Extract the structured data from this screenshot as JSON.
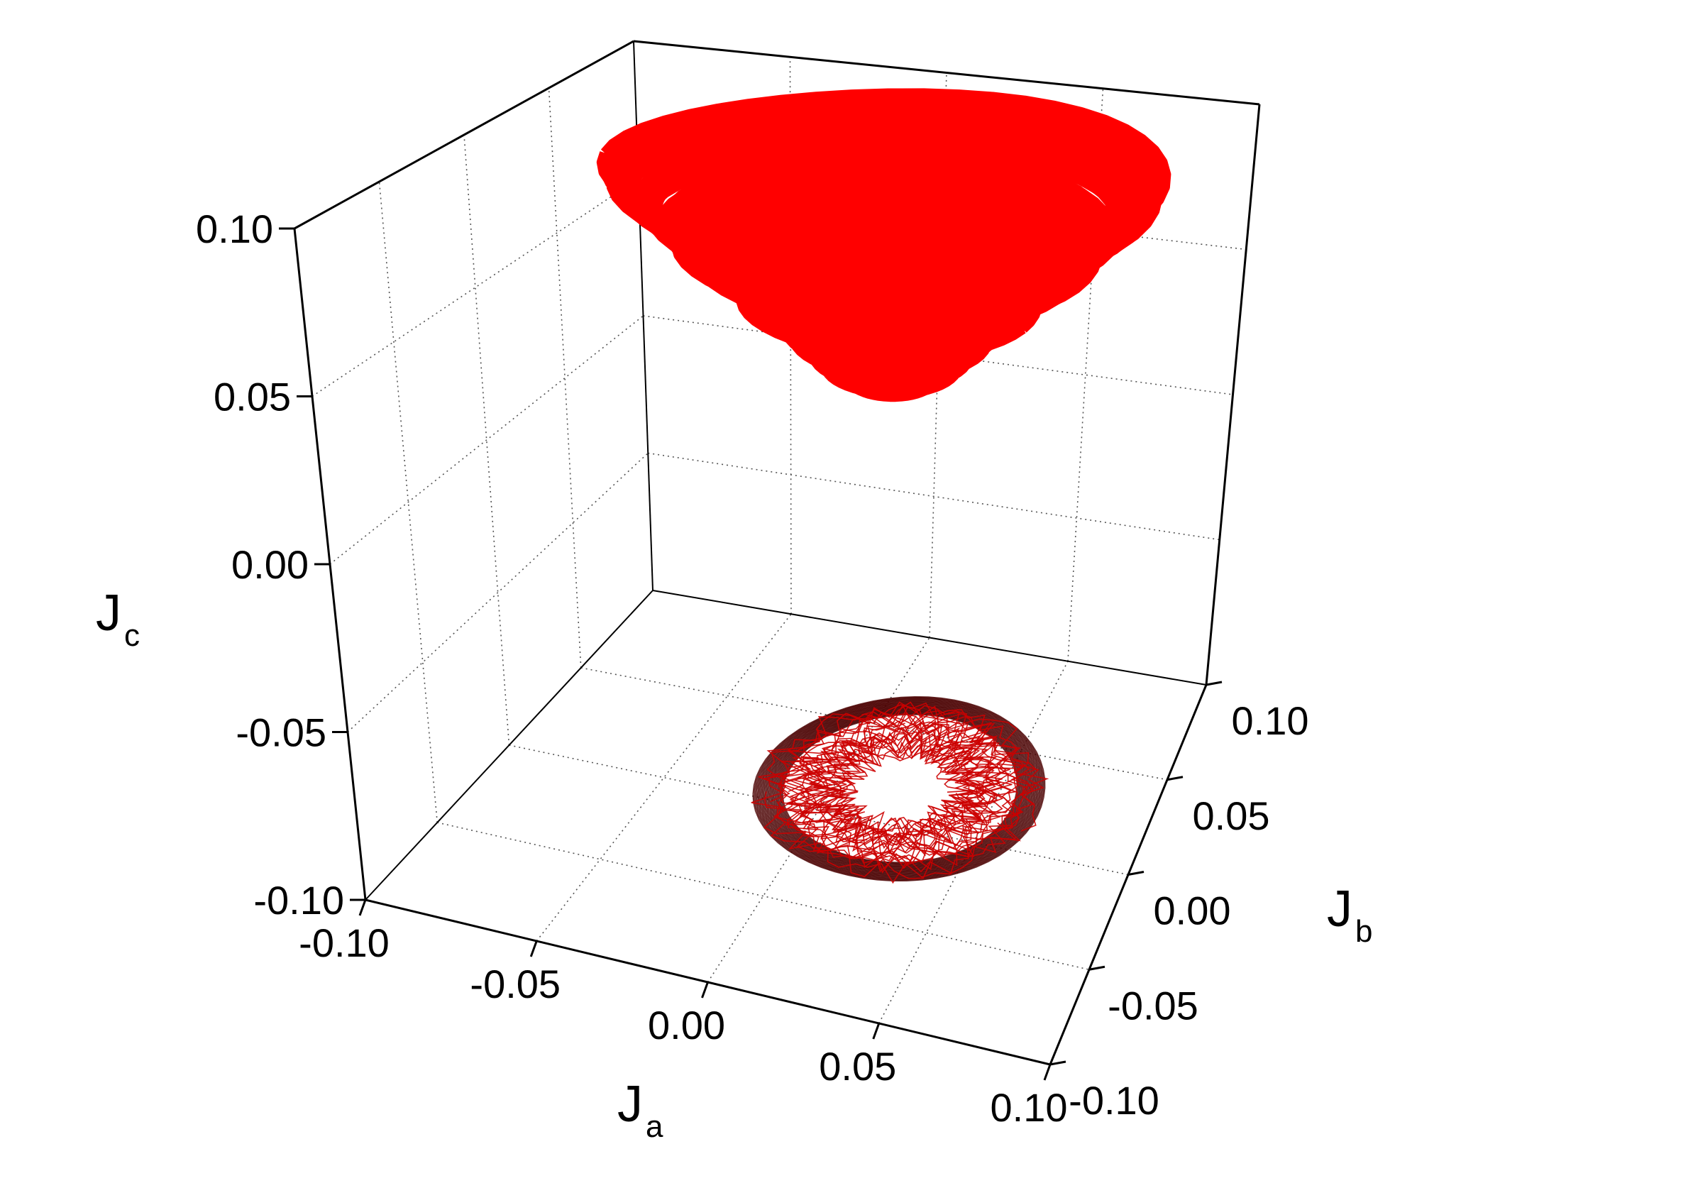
{
  "chart_data": {
    "type": "scatter",
    "projection": "3d",
    "xlabel": "J",
    "xlabel_sub": "a",
    "ylabel": "J",
    "ylabel_sub": "b",
    "zlabel": "J",
    "zlabel_sub": "c",
    "xlim": [
      -0.1,
      0.1
    ],
    "ylim": [
      -0.1,
      0.1
    ],
    "zlim": [
      -0.1,
      0.1
    ],
    "x_ticks": [
      "-0.10",
      "-0.05",
      "0.00",
      "0.05",
      "0.10"
    ],
    "y_ticks": [
      "-0.10",
      "-0.05",
      "0.00",
      "0.05",
      "0.10"
    ],
    "z_ticks": [
      "-0.10",
      "-0.05",
      "0.00",
      "0.05",
      "0.10"
    ],
    "grid": true,
    "series": [
      {
        "kind": "trajectory-3d",
        "color": "#ff0000",
        "center": {
          "x": 0.02,
          "y": 0.02,
          "z": 0.065
        },
        "approx_extent": {
          "x": [
            -0.04,
            0.08
          ],
          "y": [
            -0.03,
            0.08
          ],
          "z": [
            0.035,
            0.1
          ]
        }
      },
      {
        "kind": "projection-on-floor",
        "color": "#cc0000",
        "edge_color": "#4a0000",
        "z": -0.1,
        "center": {
          "x": 0.02,
          "y": 0.02
        },
        "radius": {
          "x": 0.045,
          "y": 0.05
        }
      }
    ]
  }
}
